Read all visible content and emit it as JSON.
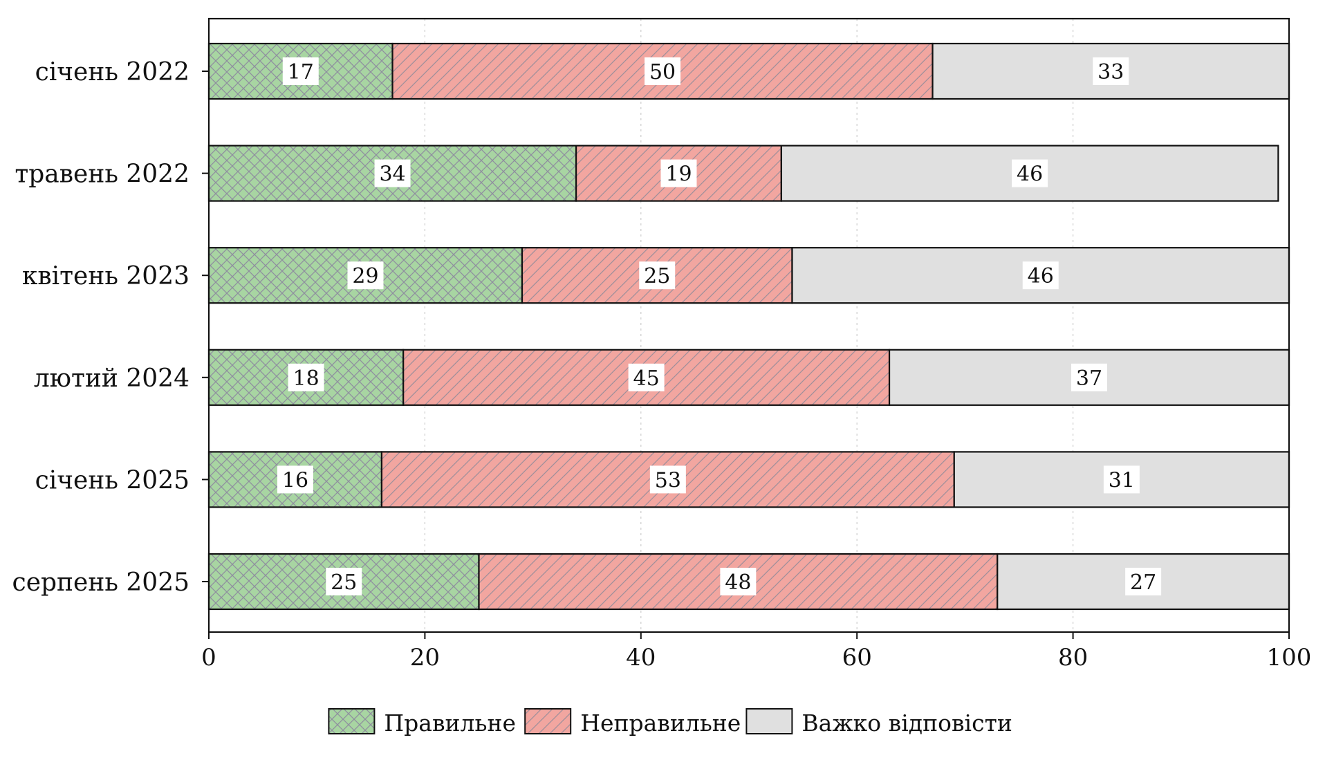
{
  "chart_data": {
    "type": "bar",
    "orientation": "horizontal",
    "stacked": true,
    "categories": [
      "січень 2022",
      "травень 2022",
      "квітень 2023",
      "лютий 2024",
      "січень 2025",
      "серпень 2025"
    ],
    "series": [
      {
        "name": "Правильне",
        "values": [
          17,
          34,
          29,
          18,
          16,
          25
        ],
        "color": "#a8d5a2",
        "hatch": "crosshatch"
      },
      {
        "name": "Неправильне",
        "values": [
          50,
          19,
          25,
          45,
          53,
          48
        ],
        "color": "#f2a6a0",
        "hatch": "diagonal"
      },
      {
        "name": "Важко відповісти",
        "values": [
          33,
          46,
          46,
          37,
          31,
          27
        ],
        "color": "#e0e0e0",
        "hatch": "none"
      }
    ],
    "xlim": [
      0,
      100
    ],
    "xticks": [
      0,
      20,
      40,
      60,
      80,
      100
    ],
    "xlabel": "",
    "ylabel": "",
    "title": "",
    "grid": "x-dotted",
    "legend_position": "bottom-center"
  }
}
